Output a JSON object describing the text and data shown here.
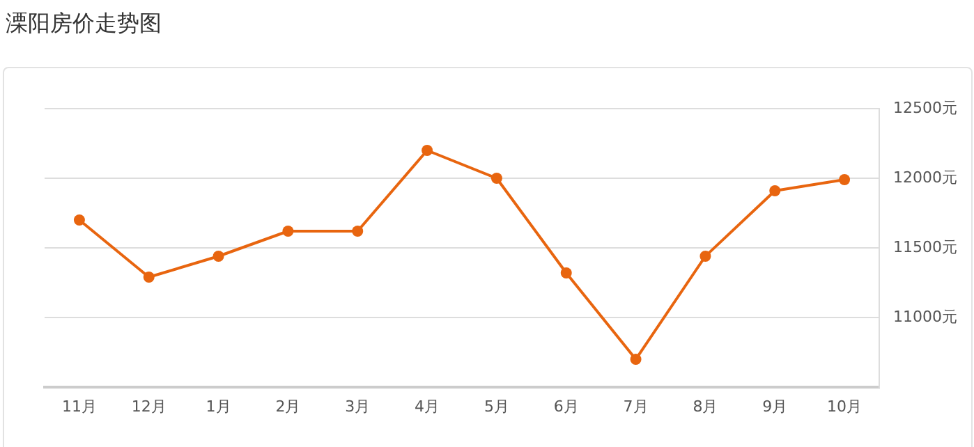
{
  "chart_data": {
    "type": "line",
    "title": "溧阳房价走势图",
    "categories": [
      "11月",
      "12月",
      "1月",
      "2月",
      "3月",
      "4月",
      "5月",
      "6月",
      "7月",
      "8月",
      "9月",
      "10月"
    ],
    "series": [
      {
        "color": "#e8650f",
        "values": [
          11700,
          11290,
          11440,
          11620,
          11620,
          12200,
          12000,
          11320,
          10700,
          11440,
          11910,
          11990
        ]
      }
    ],
    "ylim": [
      10500,
      12500
    ],
    "yticks": [
      {
        "value": 11000,
        "label": "11000元"
      },
      {
        "value": 11500,
        "label": "11500元"
      },
      {
        "value": 12000,
        "label": "12000元"
      },
      {
        "value": 12500,
        "label": "12500元"
      }
    ],
    "grid": "y",
    "marker": "circle",
    "line_style": "solid",
    "legend": false
  }
}
